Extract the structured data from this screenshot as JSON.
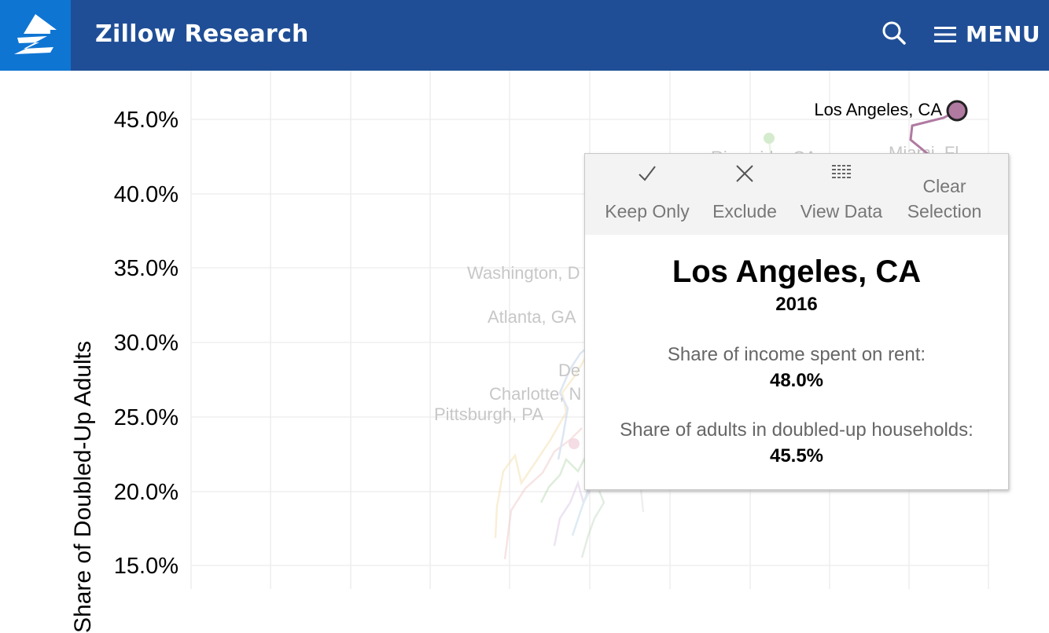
{
  "header": {
    "brand": "Zillow Research",
    "menu_label": "MENU",
    "logo_icon": "zillow-logo-icon",
    "search_icon": "search-icon",
    "menu_icon": "hamburger-icon"
  },
  "colors": {
    "header_bg": "#1f4e96",
    "logo_bg": "#0f75d3",
    "highlight": "#b07aa1",
    "faded_lines": "#e6e6e6"
  },
  "chart_data": {
    "type": "line",
    "ylabel": "Share of Doubled-Up Adults",
    "ylim": [
      14.0,
      47.0
    ],
    "yticks": [
      "45.0%",
      "40.0%",
      "35.0%",
      "30.0%",
      "25.0%",
      "20.0%",
      "15.0%"
    ],
    "grid": true,
    "highlight": {
      "name": "Los Angeles, CA",
      "label": "Los Angeles, CA",
      "point": {
        "x": 48.0,
        "y": 45.5
      }
    },
    "faded_labels": [
      "Washington, D",
      "Atlanta, GA",
      "De",
      "Charlotte, N",
      "Pittsburgh, PA",
      "Miami, Fl",
      "Riverside, CA"
    ]
  },
  "tooltip": {
    "actions": [
      {
        "label": "Keep Only",
        "icon": "check-icon"
      },
      {
        "label": "Exclude",
        "icon": "close-icon"
      },
      {
        "label": "View Data",
        "icon": "table-icon"
      },
      {
        "label": "Clear Selection",
        "line1": "Clear",
        "line2": "Selection",
        "icon": ""
      }
    ],
    "title": "Los Angeles, CA",
    "year": "2016",
    "rent_label": "Share of income spent on rent:",
    "rent_value": "48.0%",
    "doubled_label": "Share of adults in doubled-up households:",
    "doubled_value": "45.5%"
  }
}
